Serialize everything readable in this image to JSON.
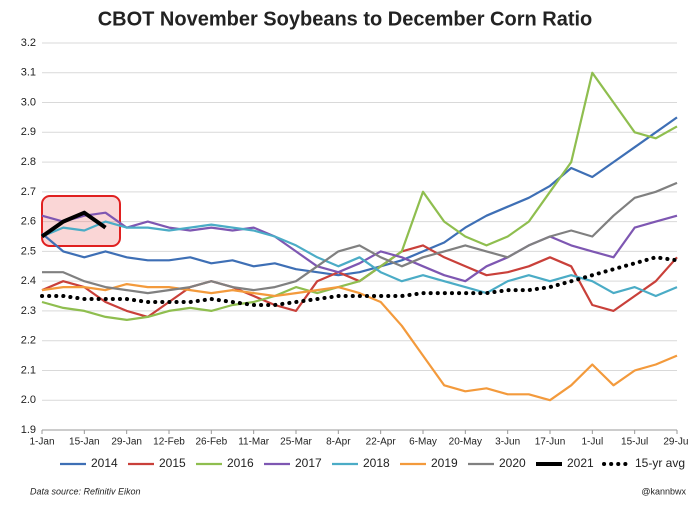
{
  "chart_data": {
    "type": "line",
    "title": "CBOT November Soybeans to December Corn Ratio",
    "source": "Data source: Refinitiv Eikon",
    "credit": "@kannbwx",
    "categories": [
      "1-Jan",
      null,
      "15-Jan",
      null,
      "29-Jan",
      null,
      "12-Feb",
      null,
      "26-Feb",
      null,
      "11-Mar",
      null,
      "25-Mar",
      null,
      "8-Apr",
      null,
      "22-Apr",
      null,
      "6-May",
      null,
      "20-May",
      null,
      "3-Jun",
      null,
      "17-Jun",
      null,
      "1-Jul",
      null,
      "15-Jul",
      null,
      "29-Jul"
    ],
    "ylim": [
      1.9,
      3.2
    ],
    "yticks": [
      1.9,
      {
        "value": 2,
        "label": "2.0"
      },
      2.1,
      2.2,
      2.3,
      2.4,
      2.5,
      2.6,
      2.7,
      2.8,
      2.9,
      {
        "value": 3,
        "label": "3.0"
      },
      3.1,
      3.2
    ],
    "grid": true,
    "legend": "bottom",
    "series": [
      {
        "name": "2014",
        "color": "#3e6fb5",
        "line_style": "solid",
        "values": [
          2.56,
          2.5,
          2.48,
          2.5,
          2.48,
          2.47,
          2.47,
          2.48,
          2.46,
          2.47,
          2.45,
          2.46,
          2.44,
          2.43,
          2.42,
          2.43,
          2.45,
          2.47,
          2.5,
          2.53,
          2.58,
          2.62,
          2.65,
          2.68,
          2.72,
          2.78,
          2.75,
          2.8,
          2.85,
          2.9,
          2.95
        ]
      },
      {
        "name": "2015",
        "color": "#c9403a",
        "line_style": "solid",
        "values": [
          2.37,
          2.4,
          2.38,
          2.33,
          2.3,
          2.28,
          2.33,
          2.38,
          2.4,
          2.38,
          2.35,
          2.32,
          2.3,
          2.4,
          2.43,
          2.4,
          2.45,
          2.5,
          2.52,
          2.48,
          2.45,
          2.42,
          2.43,
          2.45,
          2.48,
          2.45,
          2.32,
          2.3,
          2.35,
          2.4,
          2.48
        ]
      },
      {
        "name": "2016",
        "color": "#8fbe4f",
        "line_style": "solid",
        "values": [
          2.33,
          2.31,
          2.3,
          2.28,
          2.27,
          2.28,
          2.3,
          2.31,
          2.3,
          2.32,
          2.33,
          2.35,
          2.38,
          2.36,
          2.38,
          2.4,
          2.45,
          2.5,
          2.7,
          2.6,
          2.55,
          2.52,
          2.55,
          2.6,
          2.7,
          2.8,
          3.1,
          3.0,
          2.9,
          2.88,
          2.92
        ]
      },
      {
        "name": "2017",
        "color": "#7e57b2",
        "line_style": "solid",
        "values": [
          2.62,
          2.6,
          2.62,
          2.63,
          2.58,
          2.6,
          2.58,
          2.57,
          2.58,
          2.57,
          2.58,
          2.55,
          2.5,
          2.45,
          2.43,
          2.46,
          2.5,
          2.48,
          2.45,
          2.42,
          2.4,
          2.45,
          2.48,
          2.52,
          2.55,
          2.52,
          2.5,
          2.48,
          2.58,
          2.6,
          2.62
        ]
      },
      {
        "name": "2018",
        "color": "#4bacc6",
        "line_style": "solid",
        "values": [
          2.55,
          2.58,
          2.57,
          2.6,
          2.58,
          2.58,
          2.57,
          2.58,
          2.59,
          2.58,
          2.57,
          2.55,
          2.52,
          2.48,
          2.45,
          2.48,
          2.43,
          2.4,
          2.42,
          2.4,
          2.38,
          2.36,
          2.4,
          2.42,
          2.4,
          2.42,
          2.4,
          2.36,
          2.38,
          2.35,
          2.38
        ]
      },
      {
        "name": "2019",
        "color": "#f39a3c",
        "line_style": "solid",
        "values": [
          2.37,
          2.38,
          2.38,
          2.37,
          2.39,
          2.38,
          2.38,
          2.37,
          2.36,
          2.37,
          2.36,
          2.35,
          2.36,
          2.37,
          2.38,
          2.36,
          2.33,
          2.25,
          2.15,
          2.05,
          2.03,
          2.04,
          2.02,
          2.02,
          2.0,
          2.05,
          2.12,
          2.05,
          2.1,
          2.12,
          2.15
        ]
      },
      {
        "name": "2020",
        "color": "#808080",
        "line_style": "solid",
        "values": [
          2.43,
          2.43,
          2.4,
          2.38,
          2.37,
          2.36,
          2.37,
          2.38,
          2.4,
          2.38,
          2.37,
          2.38,
          2.4,
          2.45,
          2.5,
          2.52,
          2.48,
          2.45,
          2.48,
          2.5,
          2.52,
          2.5,
          2.48,
          2.52,
          2.55,
          2.57,
          2.55,
          2.62,
          2.68,
          2.7,
          2.73
        ]
      },
      {
        "name": "2021",
        "color": "#000000",
        "line_style": "thick",
        "values": [
          2.55,
          2.6,
          2.63,
          2.58,
          null,
          null,
          null,
          null,
          null,
          null,
          null,
          null,
          null,
          null,
          null,
          null,
          null,
          null,
          null,
          null,
          null,
          null,
          null,
          null,
          null,
          null,
          null,
          null,
          null,
          null,
          null
        ]
      },
      {
        "name": "15-yr avg",
        "color": "#000000",
        "line_style": "dotted",
        "values": [
          2.35,
          2.35,
          2.34,
          2.34,
          2.34,
          2.33,
          2.33,
          2.33,
          2.34,
          2.33,
          2.32,
          2.32,
          2.33,
          2.34,
          2.35,
          2.35,
          2.35,
          2.35,
          2.36,
          2.36,
          2.36,
          2.36,
          2.37,
          2.37,
          2.38,
          2.4,
          2.42,
          2.44,
          2.46,
          2.48,
          2.47
        ]
      }
    ]
  }
}
